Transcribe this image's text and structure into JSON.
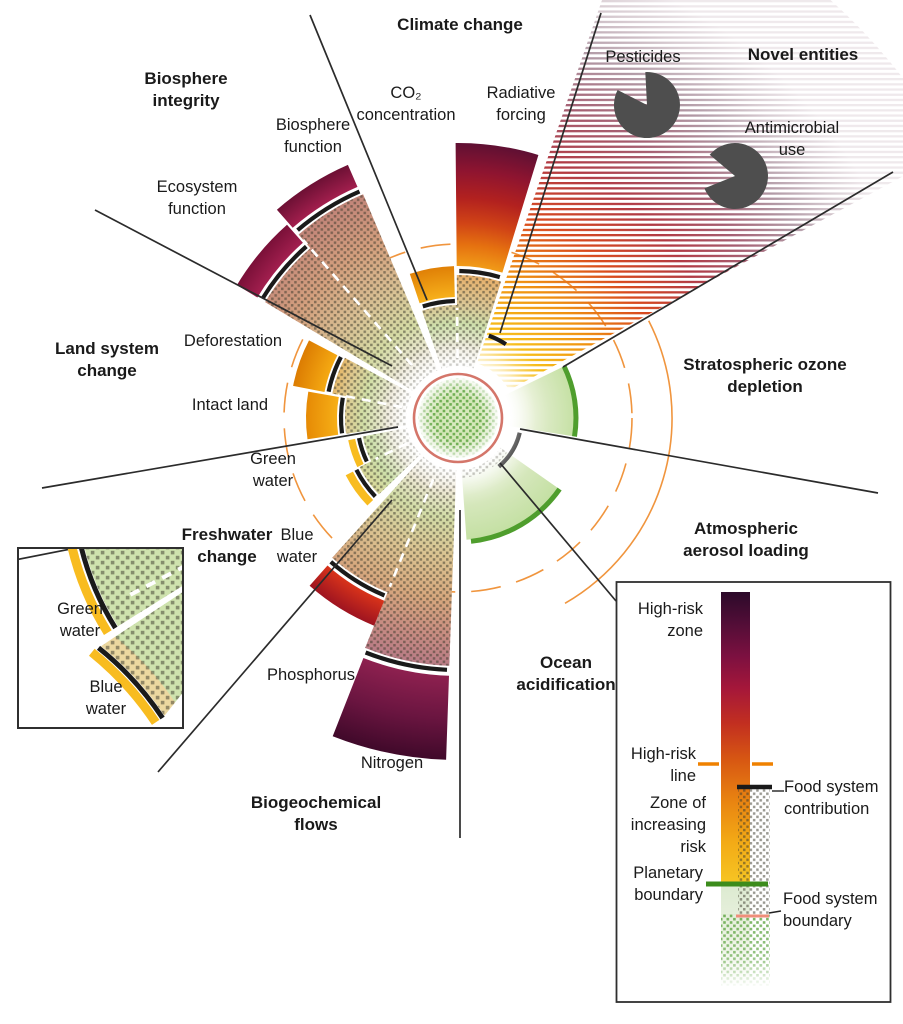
{
  "colors": {
    "pacman": "#4e4e4e",
    "center_ring": "#d4766a",
    "planetary_boundary": "#3c8c1c",
    "planetary_boundary_arc": "#4f9e2d",
    "high_risk_line": "#ef8100",
    "food_system_boundary": "#ef8e7a",
    "food_system_contribution": "#1a1a1a",
    "yellow_band": "#f8bc20",
    "divider": "#2b2b2b"
  },
  "wheel": {
    "sectors": {
      "climate": {
        "title": "Climate change",
        "sub1a": "CO₂",
        "sub1b": "concentration",
        "sub2a": "Radiative",
        "sub2b": "forcing"
      },
      "novel": {
        "title": "Novel entities",
        "sub1": "Pesticides",
        "sub2a": "Antimicrobial",
        "sub2b": "use"
      },
      "ozone": {
        "title1": "Stratospheric ozone",
        "title2": "depletion"
      },
      "aerosol": {
        "title1": "Atmospheric",
        "title2": "aerosol loading"
      },
      "ocean": {
        "title1": "Ocean",
        "title2": "acidification"
      },
      "biogeo": {
        "title1": "Biogeochemical",
        "title2": "flows",
        "sub1": "Phosphorus",
        "sub2": "Nitrogen"
      },
      "freshwater": {
        "title1": "Freshwater",
        "title2": "change",
        "sub1a": "Green",
        "sub1b": "water",
        "sub2a": "Blue",
        "sub2b": "water"
      },
      "land": {
        "title1": "Land system",
        "title2": "change",
        "sub1": "Deforestation",
        "sub2": "Intact land"
      },
      "biosphere": {
        "title1": "Biosphere",
        "title2": "integrity",
        "sub1a": "Biosphere",
        "sub1b": "function",
        "sub2a": "Ecosystem",
        "sub2b": "function"
      }
    }
  },
  "inset": {
    "green1": "Green",
    "green2": "water",
    "blue1": "Blue",
    "blue2": "water"
  },
  "legend": {
    "high_risk_zone1": "High-risk",
    "high_risk_zone2": "zone",
    "high_risk_line1": "High-risk",
    "high_risk_line2": "line",
    "zone1": "Zone of",
    "zone2": "increasing",
    "zone3": "risk",
    "planetary1": "Planetary",
    "planetary2": "boundary",
    "contribution1": "Food system",
    "contribution2": "contribution",
    "boundary1": "Food system",
    "boundary2": "boundary"
  }
}
